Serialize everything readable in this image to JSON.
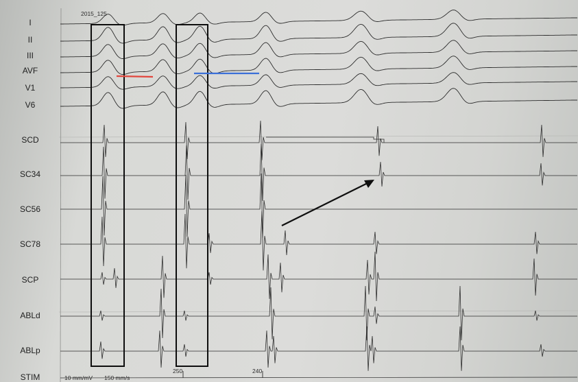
{
  "recording": {
    "id": "2015_125",
    "gain": "10 mm/mV",
    "sweep": "150 mm/s"
  },
  "leads": [
    {
      "key": "I",
      "label": "I"
    },
    {
      "key": "II",
      "label": "II"
    },
    {
      "key": "III",
      "label": "III"
    },
    {
      "key": "AVF",
      "label": "AVF"
    },
    {
      "key": "V1",
      "label": "V1"
    },
    {
      "key": "V6",
      "label": "V6"
    },
    {
      "key": "SCD",
      "label": "SCD"
    },
    {
      "key": "SC34",
      "label": "SC34"
    },
    {
      "key": "SC56",
      "label": "SC56"
    },
    {
      "key": "SC78",
      "label": "SC78"
    },
    {
      "key": "SCP",
      "label": "SCP"
    },
    {
      "key": "ABLd",
      "label": "ABLd"
    },
    {
      "key": "ABLp",
      "label": "ABLp"
    },
    {
      "key": "STIM",
      "label": "STIM"
    }
  ],
  "intervals": {
    "first": "250",
    "second": "240"
  },
  "colors": {
    "trace": "#2c2c2c",
    "box": "#0d0d0d",
    "red_line": "#e2463d",
    "blue_line": "#3a6fd8",
    "arrow": "#0f0f0f"
  }
}
